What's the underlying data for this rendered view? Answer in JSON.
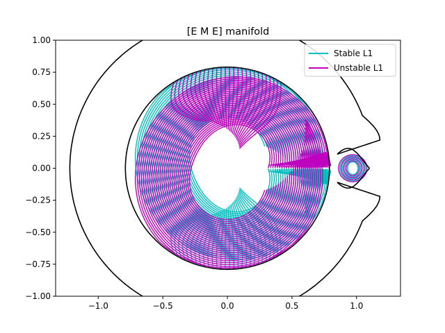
{
  "chart_data": {
    "type": "line",
    "title": "[E M E] manifold",
    "xlabel": "",
    "ylabel": "",
    "xlim": [
      -1.33,
      1.34
    ],
    "ylim": [
      -1.0,
      1.0
    ],
    "x_ticks": [
      -1.0,
      -0.5,
      0.0,
      0.5,
      1.0
    ],
    "x_tick_labels": [
      "−1.0",
      "−0.5",
      "0.0",
      "0.5",
      "1.0"
    ],
    "y_ticks": [
      1.0,
      0.75,
      0.5,
      0.25,
      0.0,
      -0.25,
      -0.5,
      -0.75,
      -1.0
    ],
    "y_tick_labels": [
      "1.00",
      "0.75",
      "0.50",
      "0.25",
      "0.00",
      "−0.25",
      "−0.50",
      "−0.75",
      "−1.00"
    ],
    "grid": false,
    "legend_position": "top-right",
    "series": [
      {
        "name": "Stable L1",
        "color": "#00bfbf"
      },
      {
        "name": "Unstable L1",
        "color": "#bf00bf"
      }
    ],
    "boundaries": {
      "color": "#000000",
      "inner_circle": {
        "center": [
          0.0,
          0.0
        ],
        "radius": 0.79
      },
      "outer_curve_x_range": [
        -1.22,
        1.1
      ],
      "neck_point": [
        0.85,
        0.0
      ]
    },
    "L1_point": [
      0.85,
      0.0
    ],
    "orbit_family_count": 28
  }
}
